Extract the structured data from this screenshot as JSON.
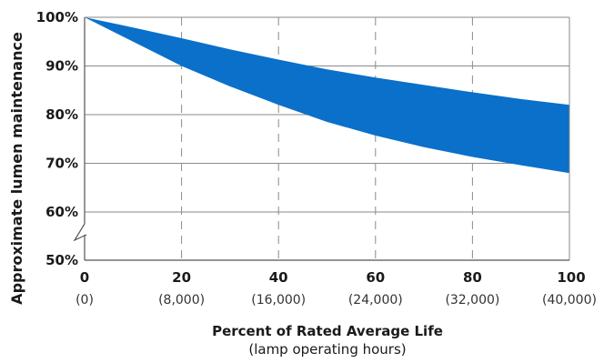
{
  "chart_data": {
    "type": "area",
    "title": "",
    "ylabel": "Approximate lumen maintenance",
    "xlabel": "Percent of Rated Average Life",
    "xlabel_sub": "(lamp operating hours)",
    "x": [
      0,
      10,
      20,
      30,
      40,
      50,
      60,
      70,
      80,
      90,
      100
    ],
    "x_ticks": [
      {
        "value": 0,
        "label": "0",
        "sublabel": "(0)"
      },
      {
        "value": 20,
        "label": "20",
        "sublabel": "(8,000)"
      },
      {
        "value": 40,
        "label": "40",
        "sublabel": "(16,000)"
      },
      {
        "value": 60,
        "label": "60",
        "sublabel": "(24,000)"
      },
      {
        "value": 80,
        "label": "80",
        "sublabel": "(32,000)"
      },
      {
        "value": 100,
        "label": "100",
        "sublabel": "(40,000)"
      }
    ],
    "y_ticks": [
      {
        "value": 100,
        "label": "100%"
      },
      {
        "value": 90,
        "label": "90%"
      },
      {
        "value": 80,
        "label": "80%"
      },
      {
        "value": 70,
        "label": "70%"
      },
      {
        "value": 60,
        "label": "60%"
      },
      {
        "value": 50,
        "label": "50%"
      }
    ],
    "ylim": [
      50,
      100
    ],
    "xlim": [
      0,
      100
    ],
    "axis_break": "y between 50% and 60%",
    "grid": "horizontal solid, vertical dashed",
    "series": [
      {
        "role": "upper",
        "values": [
          100,
          97.9,
          95.7,
          93.4,
          91.3,
          89.3,
          87.6,
          86.1,
          84.6,
          83.2,
          82.0
        ]
      },
      {
        "role": "lower",
        "values": [
          100,
          95.0,
          90.0,
          85.8,
          82.0,
          78.5,
          75.7,
          73.3,
          71.3,
          69.6,
          68.0
        ]
      }
    ],
    "fill_color": "#0a70c9"
  }
}
